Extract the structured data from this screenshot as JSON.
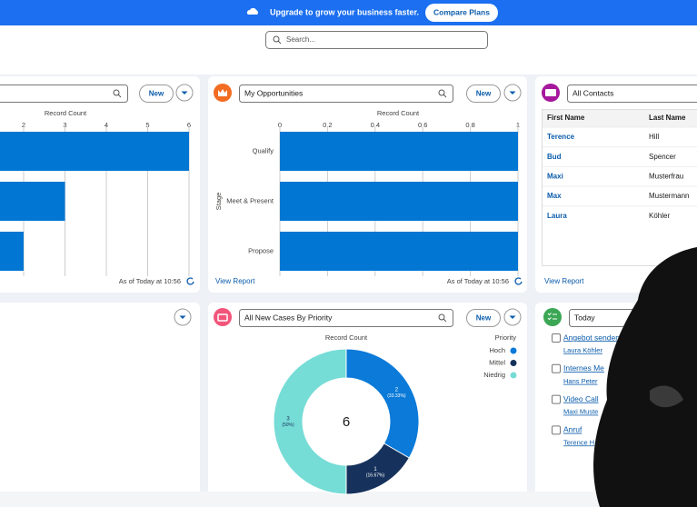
{
  "banner": {
    "text": "Upgrade to grow your business faster.",
    "button": "Compare Plans"
  },
  "search": {
    "placeholder": "Search..."
  },
  "widgets": {
    "left": {
      "button": "New"
    },
    "opportunities": {
      "button": "New",
      "link": "View Report"
    },
    "contacts": {
      "filter": "All Contacts",
      "columns": [
        "First Name",
        "Last Name"
      ],
      "rows": [
        [
          "Terence",
          "Hill"
        ],
        [
          "Bud",
          "Spencer"
        ],
        [
          "Maxi",
          "Musterfrau"
        ],
        [
          "Max",
          "Mustermann"
        ],
        [
          "Laura",
          "Köhler"
        ]
      ],
      "link": "View Report"
    },
    "cases": {
      "button": "New"
    },
    "tasks": {
      "filter": "Today",
      "items": [
        {
          "title": "Angebot senden",
          "who": "Laura Köhler"
        },
        {
          "title": "Internes Me",
          "who": "Hans Peter"
        },
        {
          "title": "Video Call",
          "who": "Maxi Muste"
        },
        {
          "title": "Anruf",
          "who": "Terence H"
        }
      ]
    }
  },
  "chart_data": [
    {
      "type": "bar",
      "orientation": "horizontal",
      "x_label": "Record Count",
      "categories": [
        null,
        null,
        null
      ],
      "values": [
        6,
        3,
        2
      ],
      "color": "#0176d3",
      "xlim": [
        0,
        6
      ],
      "xticks": [
        2,
        3,
        4,
        5,
        6
      ],
      "grid": true,
      "footer": "As of Today at 10:56"
    },
    {
      "type": "bar",
      "orientation": "horizontal",
      "title": "My Opportunities",
      "x_label": "Record Count",
      "y_label": "Stage",
      "categories": [
        "Qualify",
        "Meet & Present",
        "Propose"
      ],
      "values": [
        1,
        1,
        1
      ],
      "color": "#0176d3",
      "xlim": [
        0,
        1
      ],
      "xticks": [
        0,
        0.2,
        0.4,
        0.6,
        0.8,
        1
      ],
      "grid": true,
      "footer": "As of Today at 10:56"
    },
    {
      "type": "donut",
      "title": "All New Cases By Priority",
      "subtitle": "Record Count",
      "legend_title": "Priority",
      "categories": [
        "Hoch",
        "Mittel",
        "Niedrig"
      ],
      "values": [
        2,
        1,
        3
      ],
      "percent_labels": [
        "(33.33%)",
        "(16.67%)",
        "(50%)"
      ],
      "colors": [
        "#0b7ad8",
        "#16325c",
        "#76dcd6"
      ],
      "total": 6,
      "legend": "right"
    }
  ]
}
